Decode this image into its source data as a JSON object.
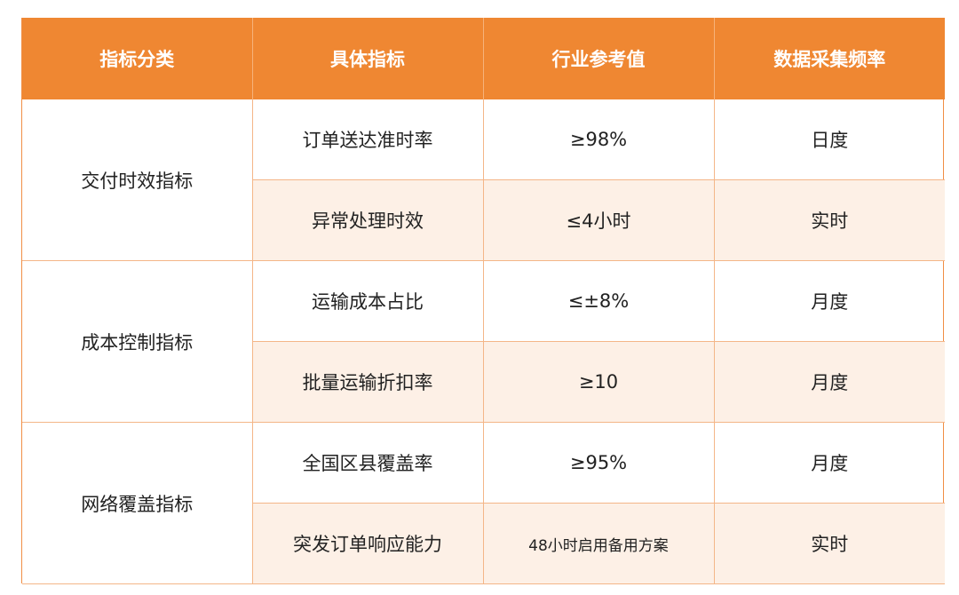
{
  "header": {
    "col1": "指标分类",
    "col2": "具体指标",
    "col3": "行业参考值",
    "col4": "数据采集频率"
  },
  "groups": [
    {
      "category": "交付时效指标",
      "rows": [
        {
          "metric": "订单送达准时率",
          "reference": "≥98%",
          "frequency": "日度"
        },
        {
          "metric": "异常处理时效",
          "reference": "≤4小时",
          "frequency": "实时"
        }
      ]
    },
    {
      "category": "成本控制指标",
      "rows": [
        {
          "metric": "运输成本占比",
          "reference": "≤±8%",
          "frequency": "月度"
        },
        {
          "metric": "批量运输折扣率",
          "reference": "≥10",
          "frequency": "月度"
        }
      ]
    },
    {
      "category": "网络覆盖指标",
      "rows": [
        {
          "metric": "全国区县覆盖率",
          "reference": "≥95%",
          "frequency": "月度"
        },
        {
          "metric": "突发订单响应能力",
          "reference": "48小时启用备用方案",
          "frequency": "实时"
        }
      ]
    }
  ]
}
